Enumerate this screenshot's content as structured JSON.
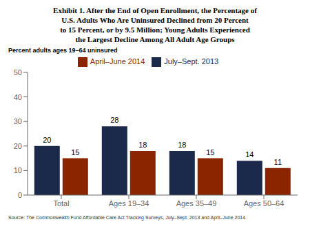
{
  "chart_data": {
    "type": "bar",
    "title": "Exhibit 1. After the End of Open Enrollment, the Percentage of\nU.S. Adults Who Are Uninsured Declined from 20 Percent\nto 15 Percent, or by 9.5 Million; Young Adults Experienced\nthe Largest Decline Among All Adult Age Groups",
    "ylabel": "Percent adults ages 19–64 uninsured",
    "source": "Source: The Commonwealth Fund Affordable Care Act Tracking Surveys, July–Sept. 2013 and April–June 2014.",
    "categories": [
      "Total",
      "Ages 19–34",
      "Ages 35–49",
      "Ages 50–64"
    ],
    "series": [
      {
        "name": "July–Sept. 2013",
        "color": "#1b2a4a",
        "values": [
          20,
          28,
          18,
          14
        ]
      },
      {
        "name": "April–June 2014",
        "color": "#8b2500",
        "values": [
          15,
          18,
          15,
          11
        ]
      }
    ],
    "ylim": [
      0,
      50
    ],
    "yticks": [
      0,
      10,
      20,
      30,
      40,
      50
    ],
    "grid": false,
    "legend": "top",
    "data_labels": true
  }
}
